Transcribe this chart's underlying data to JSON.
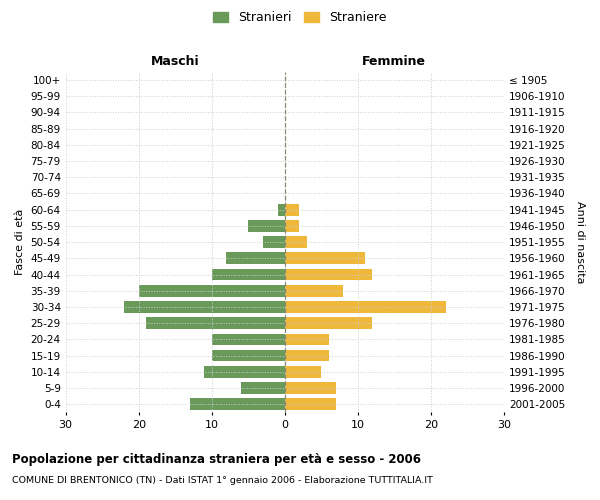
{
  "age_groups": [
    "100+",
    "95-99",
    "90-94",
    "85-89",
    "80-84",
    "75-79",
    "70-74",
    "65-69",
    "60-64",
    "55-59",
    "50-54",
    "45-49",
    "40-44",
    "35-39",
    "30-34",
    "25-29",
    "20-24",
    "15-19",
    "10-14",
    "5-9",
    "0-4"
  ],
  "birth_years": [
    "≤ 1905",
    "1906-1910",
    "1911-1915",
    "1916-1920",
    "1921-1925",
    "1926-1930",
    "1931-1935",
    "1936-1940",
    "1941-1945",
    "1946-1950",
    "1951-1955",
    "1956-1960",
    "1961-1965",
    "1966-1970",
    "1971-1975",
    "1976-1980",
    "1981-1985",
    "1986-1990",
    "1991-1995",
    "1996-2000",
    "2001-2005"
  ],
  "maschi": [
    0,
    0,
    0,
    0,
    0,
    0,
    0,
    0,
    1,
    5,
    3,
    8,
    10,
    20,
    22,
    19,
    10,
    10,
    11,
    6,
    13
  ],
  "femmine": [
    0,
    0,
    0,
    0,
    0,
    0,
    0,
    0,
    2,
    2,
    3,
    11,
    12,
    8,
    22,
    12,
    6,
    6,
    5,
    7,
    7
  ],
  "maschi_color": "#6a9a5a",
  "femmine_color": "#f0b83a",
  "background_color": "#ffffff",
  "grid_color": "#cccccc",
  "xlim": 30,
  "title": "Popolazione per cittadinanza straniera per età e sesso - 2006",
  "subtitle": "COMUNE DI BRENTONICO (TN) - Dati ISTAT 1° gennaio 2006 - Elaborazione TUTTITALIA.IT",
  "left_label": "Maschi",
  "right_label": "Femmine",
  "ylabel_left": "Fasce di età",
  "ylabel_right": "Anni di nascita",
  "legend_stranieri": "Stranieri",
  "legend_straniere": "Straniere"
}
